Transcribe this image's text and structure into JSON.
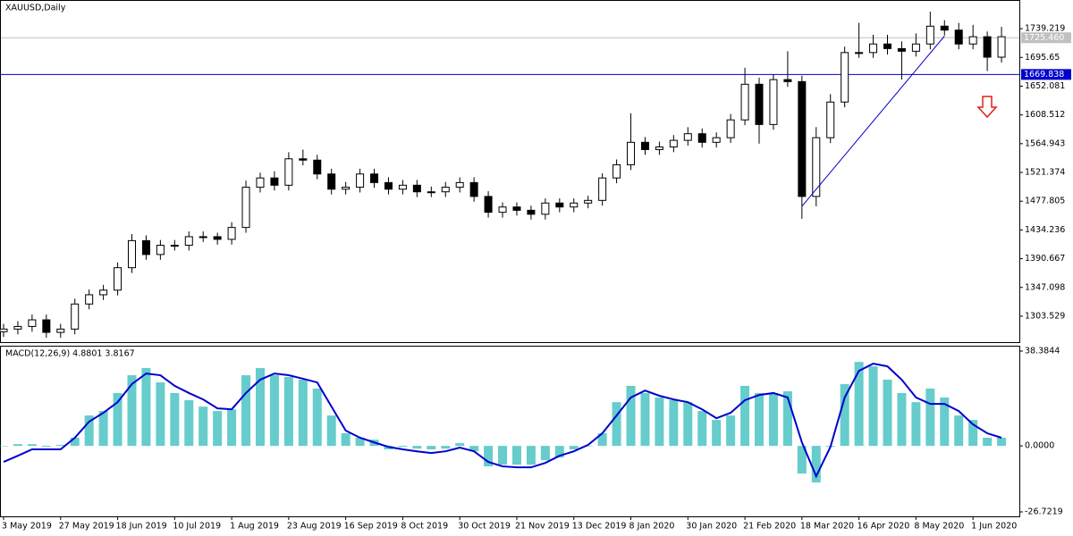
{
  "chart_data": [
    {
      "type": "candlestick",
      "title": "XAUUSD,Daily",
      "categories": [
        "3 May 2019",
        null,
        null,
        null,
        "27 May 2019",
        null,
        null,
        null,
        "18 Jun 2019",
        null,
        null,
        null,
        "10 Jul 2019",
        null,
        null,
        null,
        "1 Aug 2019",
        null,
        null,
        null,
        "23 Aug 2019",
        null,
        null,
        null,
        "16 Sep 2019",
        null,
        null,
        null,
        "8 Oct 2019",
        null,
        null,
        null,
        "30 Oct 2019",
        null,
        null,
        null,
        "21 Nov 2019",
        null,
        null,
        null,
        "13 Dec 2019",
        null,
        null,
        null,
        "8 Jan 2020",
        null,
        null,
        null,
        "30 Jan 2020",
        null,
        null,
        null,
        "21 Feb 2020",
        null,
        null,
        null,
        "18 Mar 2020",
        null,
        null,
        null,
        "16 Apr 2020",
        null,
        null,
        null,
        "8 May 2020",
        null,
        null,
        null,
        "1 Jun 2020",
        null,
        null
      ],
      "open": [
        1280,
        1284,
        1288,
        1298,
        1279,
        1284,
        1322,
        1336,
        1343,
        1377,
        1418,
        1397,
        1411,
        1411,
        1424,
        1424,
        1420,
        1438,
        1499,
        1513,
        1502,
        1542,
        1540,
        1519,
        1496,
        1499,
        1519,
        1506,
        1496,
        1502,
        1492,
        1492,
        1499,
        1506,
        1485,
        1461,
        1469,
        1464,
        1458,
        1475,
        1469,
        1475,
        1479,
        1513,
        1533,
        1567,
        1556,
        1560,
        1570,
        1580,
        1567,
        1574,
        1601,
        1655,
        1594,
        1662,
        1659,
        1485,
        1574,
        1628,
        1703,
        1703,
        1716,
        1709,
        1705,
        1716,
        1743,
        1737,
        1716,
        1727,
        1696
      ],
      "high": [
        1292,
        1296,
        1306,
        1306,
        1292,
        1330,
        1344,
        1351,
        1385,
        1428,
        1426,
        1419,
        1419,
        1432,
        1432,
        1430,
        1446,
        1509,
        1521,
        1523,
        1552,
        1556,
        1548,
        1527,
        1507,
        1527,
        1527,
        1514,
        1510,
        1510,
        1500,
        1507,
        1514,
        1514,
        1493,
        1476,
        1476,
        1471,
        1482,
        1482,
        1482,
        1486,
        1520,
        1541,
        1611,
        1575,
        1568,
        1578,
        1590,
        1588,
        1582,
        1610,
        1680,
        1665,
        1670,
        1705,
        1668,
        1590,
        1640,
        1712,
        1748,
        1730,
        1730,
        1720,
        1732,
        1765,
        1752,
        1748,
        1745,
        1735,
        1742
      ],
      "low": [
        1272,
        1276,
        1280,
        1271,
        1271,
        1276,
        1314,
        1328,
        1335,
        1369,
        1389,
        1389,
        1403,
        1403,
        1416,
        1412,
        1412,
        1430,
        1491,
        1494,
        1494,
        1532,
        1511,
        1488,
        1488,
        1491,
        1498,
        1488,
        1488,
        1484,
        1484,
        1484,
        1491,
        1477,
        1453,
        1453,
        1456,
        1450,
        1450,
        1461,
        1461,
        1467,
        1471,
        1505,
        1525,
        1548,
        1548,
        1552,
        1562,
        1559,
        1559,
        1566,
        1593,
        1565,
        1586,
        1651,
        1451,
        1470,
        1566,
        1620,
        1695,
        1695,
        1700,
        1662,
        1697,
        1708,
        1729,
        1708,
        1708,
        1675,
        1688
      ],
      "close": [
        1284,
        1288,
        1298,
        1279,
        1284,
        1322,
        1336,
        1343,
        1377,
        1418,
        1397,
        1411,
        1411,
        1424,
        1424,
        1420,
        1438,
        1499,
        1513,
        1502,
        1542,
        1540,
        1519,
        1496,
        1499,
        1519,
        1506,
        1496,
        1502,
        1492,
        1492,
        1499,
        1506,
        1485,
        1461,
        1469,
        1464,
        1458,
        1475,
        1469,
        1475,
        1479,
        1513,
        1533,
        1567,
        1556,
        1560,
        1570,
        1580,
        1567,
        1574,
        1601,
        1655,
        1594,
        1662,
        1659,
        1485,
        1574,
        1628,
        1703,
        1703,
        1716,
        1709,
        1705,
        1716,
        1743,
        1737,
        1716,
        1727,
        1696,
        1727
      ],
      "color": "#000000",
      "ylim": [
        1264.2,
        1781.3
      ],
      "yticks": [
        1739.219,
        1695.65,
        1652.081,
        1608.512,
        1564.943,
        1521.374,
        1477.805,
        1434.236,
        1390.667,
        1347.098,
        1303.529
      ],
      "hlines": [
        {
          "value": 1725.46,
          "label": "1725.460",
          "color": "#c0c0c0"
        },
        {
          "value": 1669.838,
          "label": "1669.838",
          "color": "#0000cc"
        }
      ],
      "trendline": {
        "x": [
          56,
          66
        ],
        "y": [
          1470,
          1728
        ],
        "color": "#0000cc"
      }
    },
    {
      "type": "macd",
      "label": "MACD(12,26,9) 4.8801 3.8167",
      "histogram": {
        "color": "#66cccc",
        "values": [
          0,
          0.7,
          0.7,
          -0.4,
          0.4,
          3.3,
          12.3,
          14.1,
          21.4,
          28.6,
          31.5,
          25.7,
          21.4,
          18.5,
          15.9,
          14.1,
          14.8,
          28.6,
          31.5,
          28.6,
          27.9,
          26.8,
          23.2,
          12.3,
          5.1,
          3.3,
          2.5,
          -1.4,
          -0.4,
          -1.1,
          -1.4,
          -1.1,
          1.1,
          -2.2,
          -8.3,
          -7.6,
          -7.6,
          -7.6,
          -5.8,
          -4.7,
          -1.4,
          0,
          5.1,
          17.7,
          24.3,
          21.4,
          19.6,
          18.5,
          17.7,
          14.1,
          10.5,
          12.3,
          24.3,
          21.4,
          21.4,
          22.1,
          -11.2,
          -14.8,
          -0.4,
          25,
          34,
          32.2,
          26.8,
          21.4,
          17.7,
          23.2,
          19.6,
          12.3,
          10.5,
          3.3,
          3.3
        ]
      },
      "signal": {
        "color": "#0000cc",
        "values": [
          -6.5,
          -4,
          -1.4,
          -1.4,
          -1.4,
          3.3,
          9.8,
          13.4,
          17.7,
          25,
          29.3,
          28.6,
          24.3,
          21.4,
          18.8,
          15.2,
          14.8,
          21.4,
          26.8,
          29.3,
          28.6,
          27.2,
          25.7,
          15.9,
          6.2,
          3.3,
          1.4,
          -0.4,
          -1.4,
          -2.2,
          -2.9,
          -2.2,
          -0.7,
          -2.2,
          -6.5,
          -8.3,
          -8.7,
          -8.7,
          -6.9,
          -4,
          -2.2,
          0.4,
          5.1,
          12.3,
          19.6,
          22.4,
          20.3,
          18.8,
          17.7,
          14.8,
          11.2,
          13.4,
          18.5,
          20.6,
          21.4,
          19.6,
          1.4,
          -12.3,
          -0.4,
          19.6,
          30.4,
          33.3,
          32.2,
          26.8,
          19.6,
          17,
          17,
          14.1,
          8.7,
          5.1,
          3.3
        ]
      },
      "ylim": [
        -28.53,
        40.19
      ],
      "yticks": [
        38.3844,
        {
          "value": 0,
          "label": "0.0000"
        },
        -26.7219
      ]
    }
  ]
}
